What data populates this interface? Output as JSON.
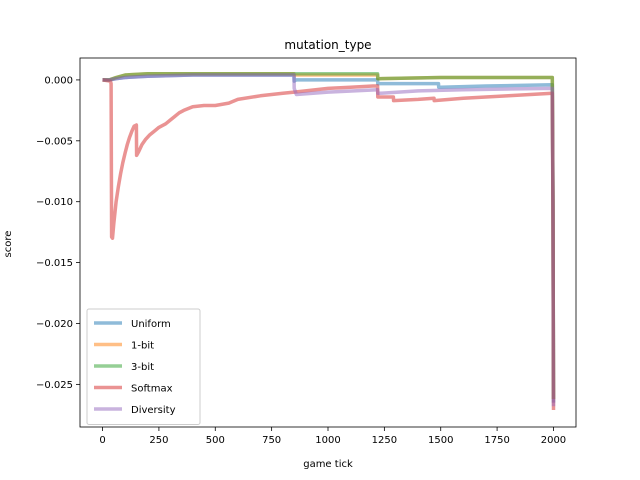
{
  "chart_data": {
    "type": "line",
    "title": "mutation_type",
    "xlabel": "game tick",
    "ylabel": "score",
    "xlim": [
      -100,
      2100
    ],
    "ylim": [
      -0.0285,
      0.0018
    ],
    "xticks": [
      0,
      250,
      500,
      750,
      1000,
      1250,
      1500,
      1750,
      2000
    ],
    "xtick_labels": [
      "0",
      "250",
      "500",
      "750",
      "1000",
      "1250",
      "1500",
      "1750",
      "2000"
    ],
    "yticks": [
      0.0,
      -0.005,
      -0.01,
      -0.015,
      -0.02,
      -0.025
    ],
    "ytick_labels": [
      "0.000",
      "−0.005",
      "−0.010",
      "−0.015",
      "−0.020",
      "−0.025"
    ],
    "grid": false,
    "legend_position": "lower-left",
    "series": [
      {
        "name": "Uniform",
        "color": "#1f77b4",
        "x": [
          0,
          30,
          60,
          100,
          200,
          400,
          600,
          849,
          850,
          860,
          1000,
          1220,
          1221,
          1230,
          1490,
          1491,
          1500,
          1700,
          1995,
          1998,
          2000
        ],
        "y": [
          0.0,
          0.0,
          0.0001,
          0.0002,
          0.0003,
          0.0004,
          0.0004,
          0.0004,
          -0.0001,
          0.0,
          0.0,
          0.0,
          -0.0003,
          -0.0003,
          -0.0003,
          -0.0006,
          -0.0006,
          -0.0005,
          -0.0004,
          -0.01,
          -0.0265
        ]
      },
      {
        "name": "1-bit",
        "color": "#ff7f0e",
        "x": [
          0,
          30,
          60,
          100,
          200,
          400,
          600,
          849,
          850,
          1000,
          1220,
          1221,
          1500,
          1700,
          1995,
          1998,
          2000
        ],
        "y": [
          0.0,
          0.0,
          0.0002,
          0.0004,
          0.0005,
          0.0005,
          0.0005,
          0.0005,
          0.0004,
          0.0004,
          0.0004,
          0.0001,
          0.0002,
          0.0002,
          0.0002,
          -0.01,
          -0.0262
        ]
      },
      {
        "name": "3-bit",
        "color": "#2ca02c",
        "x": [
          0,
          30,
          60,
          100,
          200,
          400,
          600,
          849,
          850,
          1000,
          1220,
          1221,
          1500,
          1700,
          1995,
          1998,
          2000
        ],
        "y": [
          0.0,
          0.0,
          0.0002,
          0.0004,
          0.0005,
          0.0005,
          0.0005,
          0.0005,
          0.0005,
          0.0005,
          0.0005,
          0.0001,
          0.0002,
          0.0002,
          0.0002,
          -0.01,
          -0.0262
        ]
      },
      {
        "name": "Softmax",
        "color": "#d62728",
        "x": [
          0,
          35,
          38,
          40,
          44,
          50,
          60,
          70,
          80,
          90,
          100,
          110,
          120,
          130,
          140,
          150,
          151,
          160,
          175,
          190,
          210,
          230,
          250,
          280,
          300,
          320,
          340,
          360,
          400,
          450,
          500,
          560,
          600,
          700,
          800,
          850,
          900,
          1000,
          1100,
          1200,
          1220,
          1221,
          1290,
          1291,
          1400,
          1470,
          1471,
          1600,
          1800,
          1995,
          1998,
          2000
        ],
        "y": [
          0.0,
          -0.0001,
          -0.0003,
          -0.0129,
          -0.013,
          -0.0118,
          -0.01,
          -0.0088,
          -0.0077,
          -0.0068,
          -0.006,
          -0.0053,
          -0.0047,
          -0.0042,
          -0.0038,
          -0.0037,
          -0.0062,
          -0.0059,
          -0.0053,
          -0.0049,
          -0.0045,
          -0.0042,
          -0.0039,
          -0.0036,
          -0.0033,
          -0.003,
          -0.0027,
          -0.0025,
          -0.0022,
          -0.0021,
          -0.0021,
          -0.0019,
          -0.0016,
          -0.0013,
          -0.0011,
          -0.001,
          -0.0009,
          -0.0007,
          -0.0006,
          -0.0005,
          -0.0005,
          -0.0014,
          -0.0014,
          -0.0017,
          -0.0016,
          -0.0015,
          -0.0017,
          -0.0015,
          -0.0013,
          -0.0011,
          -0.012,
          -0.0271
        ]
      },
      {
        "name": "Diversity",
        "color": "#9467bd",
        "x": [
          0,
          30,
          60,
          100,
          200,
          400,
          600,
          849,
          850,
          860,
          1000,
          1220,
          1221,
          1230,
          1400,
          1600,
          1995,
          1998,
          2000
        ],
        "y": [
          0.0,
          0.0,
          0.0001,
          0.0002,
          0.0003,
          0.0004,
          0.0004,
          0.0004,
          -0.0007,
          -0.0012,
          -0.001,
          -0.0008,
          -0.0011,
          -0.0011,
          -0.0009,
          -0.0008,
          -0.0007,
          -0.011,
          -0.0268
        ]
      }
    ]
  }
}
